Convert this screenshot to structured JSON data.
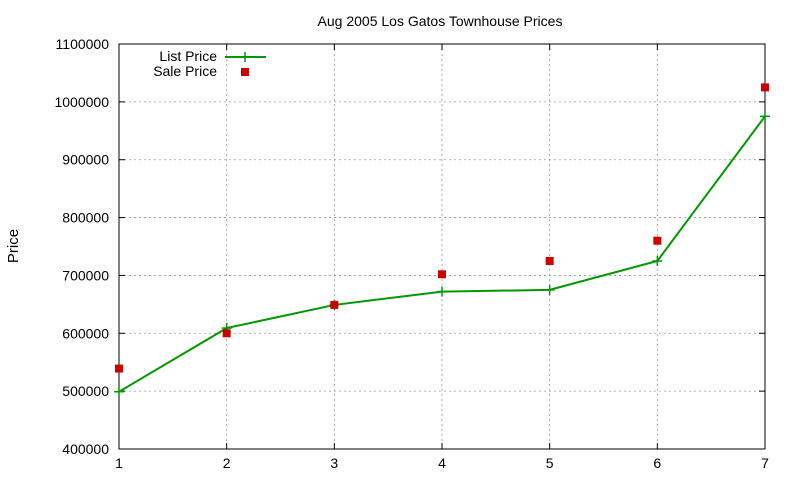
{
  "chart_data": {
    "type": "line",
    "title": "Aug 2005 Los Gatos Townhouse Prices",
    "xlabel": "",
    "ylabel": "Price",
    "x": [
      1,
      2,
      3,
      4,
      5,
      6,
      7
    ],
    "xlim": [
      1,
      7
    ],
    "ylim": [
      400000,
      1100000
    ],
    "xticks": [
      1,
      2,
      3,
      4,
      5,
      6,
      7
    ],
    "yticks": [
      400000,
      500000,
      600000,
      700000,
      800000,
      900000,
      1000000,
      1100000
    ],
    "grid": true,
    "legend_position": "top-left",
    "series": [
      {
        "name": "List Price",
        "style": "line-with-plus-markers",
        "color": "#009900",
        "values": [
          499000,
          609000,
          649000,
          672000,
          675000,
          725000,
          975000
        ]
      },
      {
        "name": "Sale Price",
        "style": "square-markers",
        "color": "#cc0000",
        "values": [
          539000,
          600000,
          649000,
          702000,
          725000,
          760000,
          1025000
        ]
      }
    ]
  }
}
